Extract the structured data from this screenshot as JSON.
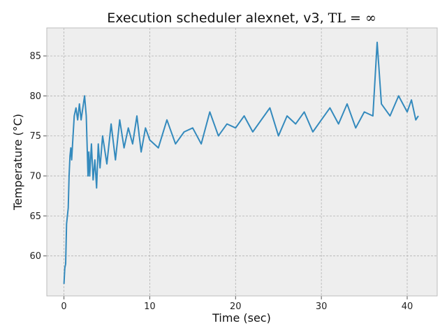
{
  "chart_data": {
    "type": "line",
    "title": "Execution scheduler alexnet, v3,",
    "title_math": "TL = ∞",
    "xlabel": "Time (sec)",
    "ylabel": "Temperature (°C)",
    "xlim": [
      -2,
      43.5
    ],
    "ylim": [
      55,
      88.5
    ],
    "xticks": [
      0,
      10,
      20,
      30,
      40
    ],
    "yticks": [
      60,
      65,
      70,
      75,
      80,
      85
    ],
    "grid": true,
    "style": {
      "line_color": "#348ABD",
      "plot_bg": "#EEEEEE",
      "grid_color": "#B2B2B2"
    },
    "series": [
      {
        "x": [
          0.0,
          0.1,
          0.2,
          0.3,
          0.4,
          0.5,
          0.6,
          0.7,
          0.8,
          0.9,
          1.0,
          1.2,
          1.4,
          1.6,
          1.8,
          2.0,
          2.2,
          2.4,
          2.6,
          2.8,
          2.9,
          3.0,
          3.2,
          3.4,
          3.6,
          3.8,
          4.0,
          4.2,
          4.5,
          5.0,
          5.5,
          6.0,
          6.5,
          7.0,
          7.5,
          8.0,
          8.5,
          9.0,
          9.5,
          10.0,
          11.0,
          12.0,
          13.0,
          14.0,
          15.0,
          16.0,
          17.0,
          18.0,
          19.0,
          20.0,
          21.0,
          22.0,
          23.0,
          24.0,
          25.0,
          26.0,
          27.0,
          28.0,
          29.0,
          30.0,
          31.0,
          32.0,
          33.0,
          34.0,
          35.0,
          36.0,
          36.5,
          37.0,
          38.0,
          39.0,
          40.0,
          40.5,
          41.0,
          41.3
        ],
        "y": [
          56.5,
          58.5,
          59.0,
          64.0,
          65.0,
          66.0,
          70.0,
          72.5,
          73.5,
          72.0,
          74.0,
          77.5,
          78.5,
          77.0,
          79.0,
          77.0,
          78.5,
          80.0,
          77.5,
          70.0,
          73.0,
          70.0,
          74.0,
          69.5,
          72.0,
          68.5,
          74.0,
          71.0,
          75.0,
          71.5,
          76.5,
          72.0,
          77.0,
          73.5,
          76.0,
          74.0,
          77.5,
          73.0,
          76.0,
          74.5,
          73.5,
          77.0,
          74.0,
          75.5,
          76.0,
          74.0,
          78.0,
          75.0,
          76.5,
          76.0,
          77.5,
          75.5,
          77.0,
          78.5,
          75.0,
          77.5,
          76.5,
          78.0,
          75.5,
          77.0,
          78.5,
          76.5,
          79.0,
          76.0,
          78.0,
          77.5,
          86.7,
          79.0,
          77.5,
          80.0,
          78.0,
          79.5,
          77.0,
          77.5
        ]
      }
    ]
  }
}
